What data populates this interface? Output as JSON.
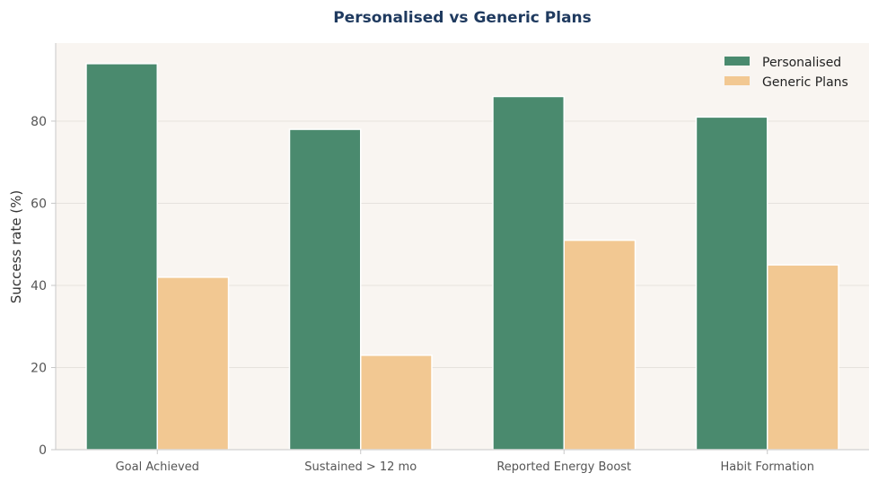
{
  "chart_data": {
    "type": "bar",
    "title": "Personalised vs Generic Plans",
    "xlabel": "",
    "ylabel": "Success rate (%)",
    "categories": [
      "Goal Achieved",
      "Sustained > 12 mo",
      "Reported Energy Boost",
      "Habit Formation"
    ],
    "series": [
      {
        "name": "Personalised",
        "values": [
          94,
          78,
          86,
          81
        ],
        "color": "#4a8a6e"
      },
      {
        "name": "Generic Plans",
        "values": [
          42,
          23,
          51,
          45
        ],
        "color": "#f2c892"
      }
    ],
    "ylim": [
      0,
      99
    ],
    "yticks": [
      0,
      20,
      40,
      60,
      80
    ],
    "grid": "horizontal",
    "legend": "top-right",
    "background": "#f9f5f1"
  }
}
